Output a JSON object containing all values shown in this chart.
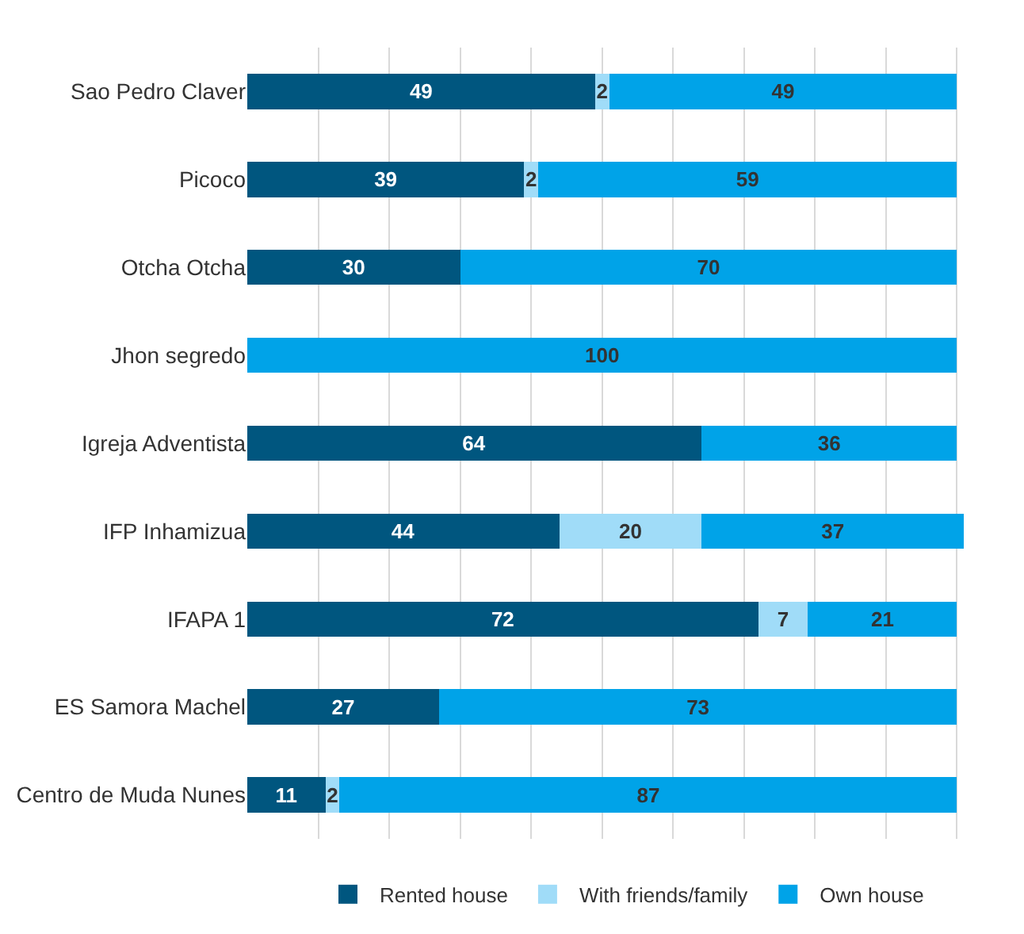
{
  "chart_data": {
    "type": "bar",
    "orientation": "horizontal",
    "stacked": true,
    "categories": [
      "Sao Pedro Claver",
      "Picoco",
      "Otcha Otcha",
      "Jhon segredo",
      "Igreja Adventista",
      "IFP Inhamizua",
      "IFAPA 1",
      "ES Samora Machel",
      "Centro de Muda Nunes"
    ],
    "series": [
      {
        "name": "Rented house",
        "color": "#00567f",
        "values": [
          49,
          39,
          30,
          null,
          64,
          44,
          72,
          27,
          11
        ]
      },
      {
        "name": "With friends/family",
        "color": "#a0dcf8",
        "values": [
          2,
          2,
          null,
          null,
          null,
          20,
          7,
          null,
          2
        ]
      },
      {
        "name": "Own house",
        "color": "#00a3e8",
        "values": [
          49,
          59,
          70,
          100,
          36,
          37,
          21,
          73,
          87
        ]
      }
    ],
    "tick_labels": "y",
    "grid": "x",
    "legend": "bottom",
    "data_labels": true
  }
}
